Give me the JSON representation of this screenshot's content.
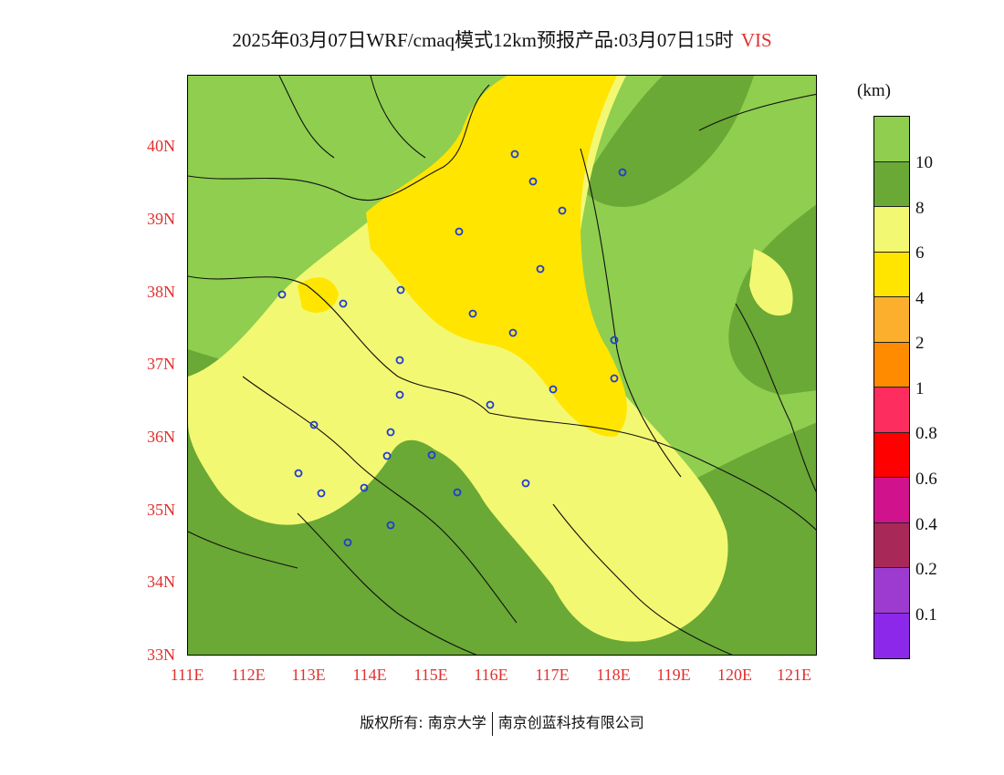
{
  "header": {
    "title": "2025年03月07日WRF/cmaq模式12km预报产品:03月07日15时",
    "variable": "VIS"
  },
  "colorbar": {
    "unit": "(km)",
    "colors": [
      "#8fce4f",
      "#6aa935",
      "#f3f872",
      "#ffe500",
      "#fbaf2c",
      "#ff8b00",
      "#fd2d5f",
      "#ff0000",
      "#d0138c",
      "#a82858",
      "#9d3bd1",
      "#8c28ea"
    ],
    "labels": [
      "10",
      "8",
      "6",
      "4",
      "2",
      "1",
      "0.8",
      "0.6",
      "0.4",
      "0.2",
      "0.1"
    ]
  },
  "axes": {
    "lat_labels": [
      "40N",
      "39N",
      "38N",
      "37N",
      "36N",
      "35N",
      "34N",
      "33N"
    ],
    "lon_labels": [
      "111E",
      "112E",
      "113E",
      "114E",
      "115E",
      "116E",
      "117E",
      "118E",
      "119E",
      "120E",
      "121E"
    ]
  },
  "footer": {
    "left": "版权所有: 南京大学",
    "right": "南京创蓝科技有限公司"
  }
}
